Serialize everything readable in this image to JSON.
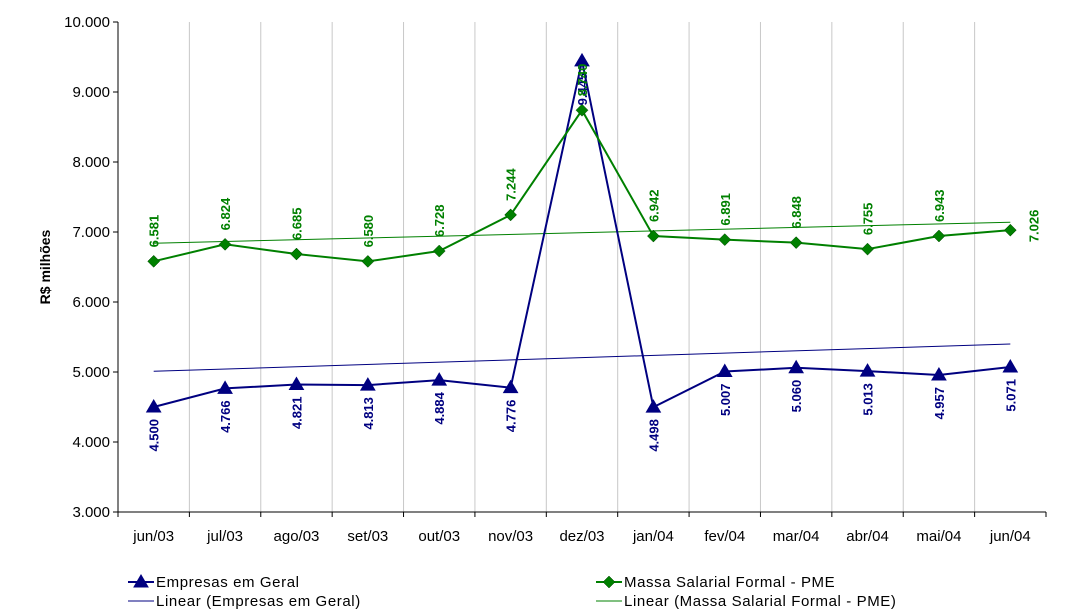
{
  "chart_data": {
    "type": "line",
    "ylabel": "R$ milhões",
    "ylim": [
      3000,
      10000
    ],
    "yticks": [
      "3.000",
      "4.000",
      "5.000",
      "6.000",
      "7.000",
      "8.000",
      "9.000",
      "10.000"
    ],
    "ytick_values": [
      3000,
      4000,
      5000,
      6000,
      7000,
      8000,
      9000,
      10000
    ],
    "categories": [
      "jun/03",
      "jul/03",
      "ago/03",
      "set/03",
      "out/03",
      "nov/03",
      "dez/03",
      "jan/04",
      "fev/04",
      "mar/04",
      "abr/04",
      "mai/04",
      "jun/04"
    ],
    "grid": "vertical",
    "series": [
      {
        "name": "Empresas em Geral",
        "color": "#000080",
        "marker": "triangle",
        "values": [
          4500,
          4766,
          4821,
          4813,
          4884,
          4776,
          9445,
          4498,
          5007,
          5060,
          5013,
          4957,
          5071
        ],
        "labels": [
          "4.500",
          "4.766",
          "4.821",
          "4.813",
          "4.884",
          "4.776",
          "9.445",
          "4.498",
          "5.007",
          "5.060",
          "5.013",
          "4.957",
          "5.071"
        ]
      },
      {
        "name": "Massa Salarial Formal - PME",
        "color": "#008000",
        "marker": "diamond",
        "values": [
          6581,
          6824,
          6685,
          6580,
          6728,
          7244,
          8740,
          6942,
          6891,
          6848,
          6755,
          6943,
          7026
        ],
        "labels": [
          "6.581",
          "6.824",
          "6.685",
          "6.580",
          "6.728",
          "7.244",
          "8.740",
          "6.942",
          "6.891",
          "6.848",
          "6.755",
          "6.943",
          "7.026"
        ]
      }
    ],
    "trendlines": [
      {
        "name": "Linear (Empresas em Geral)",
        "color": "#000080",
        "start": 5010,
        "end": 5400
      },
      {
        "name": "Linear (Massa Salarial Formal - PME)",
        "color": "#008000",
        "start": 6840,
        "end": 7140
      }
    ],
    "legend": "bottom"
  }
}
